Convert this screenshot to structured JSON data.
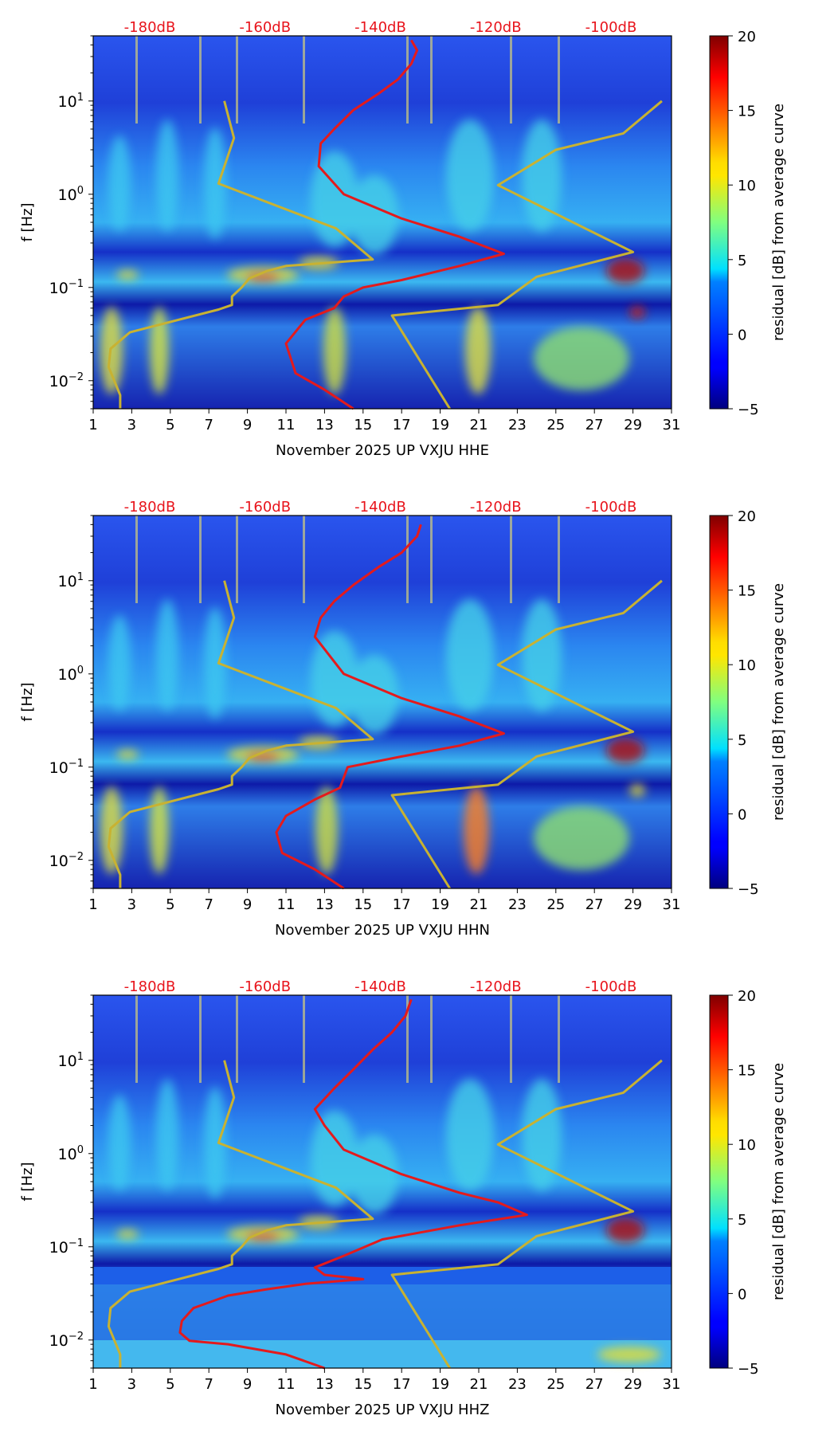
{
  "chart_data": [
    {
      "type": "heatmap",
      "title": "",
      "xlabel": "November 2025 UP VXJU  HHE",
      "ylabel": "f [Hz]",
      "xlim": [
        1,
        31
      ],
      "ylim": [
        0.005,
        50
      ],
      "yscale": "log",
      "x_ticks": [
        "1",
        "3",
        "5",
        "7",
        "9",
        "11",
        "13",
        "15",
        "17",
        "19",
        "21",
        "23",
        "25",
        "27",
        "29",
        "31"
      ],
      "y_ticks": [
        {
          "value": 0.01,
          "base": "10",
          "exp": "−2"
        },
        {
          "value": 0.1,
          "base": "10",
          "exp": "−1"
        },
        {
          "value": 1,
          "base": "10",
          "exp": "0"
        },
        {
          "value": 10,
          "base": "10",
          "exp": "1"
        }
      ],
      "top_labels": [
        "-180dB",
        "-160dB",
        "-140dB",
        "-120dB",
        "-100dB"
      ],
      "colorbar": {
        "label": "residual [dB] from average curve",
        "min": -5,
        "max": 20,
        "ticks": [
          "20",
          "15",
          "10",
          "5",
          "0",
          "−5"
        ]
      },
      "series": [
        {
          "name": "low noise model",
          "color": "#c8b232",
          "points": [
            [
              2.4,
              0.005
            ],
            [
              2.4,
              0.007
            ],
            [
              1.8,
              0.014
            ],
            [
              1.9,
              0.022
            ],
            [
              2.9,
              0.033
            ],
            [
              7.5,
              0.058
            ],
            [
              8.2,
              0.065
            ],
            [
              8.2,
              0.08
            ],
            [
              8.7,
              0.1
            ],
            [
              9.1,
              0.125
            ],
            [
              10,
              0.15
            ],
            [
              11,
              0.17
            ],
            [
              15.5,
              0.2
            ],
            [
              13.6,
              0.43
            ],
            [
              7.5,
              1.3
            ],
            [
              8.3,
              4
            ],
            [
              7.8,
              10
            ]
          ]
        },
        {
          "name": "high noise model",
          "color": "#c8b232",
          "points": [
            [
              19.5,
              0.005
            ],
            [
              16.5,
              0.05
            ],
            [
              22,
              0.065
            ],
            [
              24,
              0.13
            ],
            [
              29,
              0.24
            ],
            [
              22,
              1.25
            ],
            [
              25,
              3
            ],
            [
              28.5,
              4.5
            ],
            [
              30.5,
              10
            ]
          ]
        },
        {
          "name": "median PSD",
          "color": "#e41a1c",
          "points": [
            [
              14.5,
              0.005
            ],
            [
              13,
              0.008
            ],
            [
              11.5,
              0.012
            ],
            [
              11,
              0.025
            ],
            [
              12,
              0.045
            ],
            [
              13.5,
              0.06
            ],
            [
              14,
              0.08
            ],
            [
              15,
              0.1
            ],
            [
              17,
              0.12
            ],
            [
              20,
              0.17
            ],
            [
              22.3,
              0.23
            ],
            [
              20,
              0.35
            ],
            [
              17,
              0.55
            ],
            [
              14,
              1
            ],
            [
              12.7,
              2
            ],
            [
              12.8,
              3.5
            ],
            [
              13.5,
              5
            ],
            [
              14.5,
              8
            ],
            [
              15.8,
              12
            ],
            [
              16.8,
              17
            ],
            [
              17.5,
              25
            ],
            [
              17.8,
              35
            ],
            [
              17.5,
              45
            ]
          ]
        }
      ]
    },
    {
      "type": "heatmap",
      "title": "",
      "xlabel": "November 2025 UP VXJU  HHN",
      "ylabel": "f [Hz]",
      "xlim": [
        1,
        31
      ],
      "ylim": [
        0.005,
        50
      ],
      "yscale": "log",
      "x_ticks": [
        "1",
        "3",
        "5",
        "7",
        "9",
        "11",
        "13",
        "15",
        "17",
        "19",
        "21",
        "23",
        "25",
        "27",
        "29",
        "31"
      ],
      "y_ticks": [
        {
          "value": 0.01,
          "base": "10",
          "exp": "−2"
        },
        {
          "value": 0.1,
          "base": "10",
          "exp": "−1"
        },
        {
          "value": 1,
          "base": "10",
          "exp": "0"
        },
        {
          "value": 10,
          "base": "10",
          "exp": "1"
        }
      ],
      "top_labels": [
        "-180dB",
        "-160dB",
        "-140dB",
        "-120dB",
        "-100dB"
      ],
      "colorbar": {
        "label": "residual [dB] from average curve",
        "min": -5,
        "max": 20,
        "ticks": [
          "20",
          "15",
          "10",
          "5",
          "0",
          "−5"
        ]
      },
      "series": [
        {
          "name": "low noise model",
          "color": "#c8b232",
          "points": [
            [
              2.4,
              0.005
            ],
            [
              2.4,
              0.007
            ],
            [
              1.8,
              0.014
            ],
            [
              1.9,
              0.022
            ],
            [
              2.9,
              0.033
            ],
            [
              7.5,
              0.058
            ],
            [
              8.2,
              0.065
            ],
            [
              8.2,
              0.08
            ],
            [
              8.7,
              0.1
            ],
            [
              9.1,
              0.125
            ],
            [
              10,
              0.15
            ],
            [
              11,
              0.17
            ],
            [
              15.5,
              0.2
            ],
            [
              13.6,
              0.43
            ],
            [
              7.5,
              1.3
            ],
            [
              8.3,
              4
            ],
            [
              7.8,
              10
            ]
          ]
        },
        {
          "name": "high noise model",
          "color": "#c8b232",
          "points": [
            [
              19.5,
              0.005
            ],
            [
              16.5,
              0.05
            ],
            [
              22,
              0.065
            ],
            [
              24,
              0.13
            ],
            [
              29,
              0.24
            ],
            [
              22,
              1.25
            ],
            [
              25,
              3
            ],
            [
              28.5,
              4.5
            ],
            [
              30.5,
              10
            ]
          ]
        },
        {
          "name": "median PSD",
          "color": "#e41a1c",
          "points": [
            [
              14,
              0.005
            ],
            [
              12.5,
              0.008
            ],
            [
              10.8,
              0.012
            ],
            [
              10.5,
              0.02
            ],
            [
              11,
              0.03
            ],
            [
              12.5,
              0.045
            ],
            [
              13.8,
              0.06
            ],
            [
              14.2,
              0.1
            ],
            [
              17,
              0.13
            ],
            [
              20,
              0.17
            ],
            [
              22.3,
              0.23
            ],
            [
              20,
              0.35
            ],
            [
              17,
              0.55
            ],
            [
              14,
              1
            ],
            [
              12.5,
              2.5
            ],
            [
              12.8,
              4
            ],
            [
              13.5,
              6
            ],
            [
              14.5,
              9
            ],
            [
              15.8,
              14
            ],
            [
              17,
              20
            ],
            [
              17.8,
              30
            ],
            [
              18,
              40
            ]
          ]
        }
      ]
    },
    {
      "type": "heatmap",
      "title": "",
      "xlabel": "November 2025 UP VXJU  HHZ",
      "ylabel": "f [Hz]",
      "xlim": [
        1,
        31
      ],
      "ylim": [
        0.005,
        50
      ],
      "yscale": "log",
      "x_ticks": [
        "1",
        "3",
        "5",
        "7",
        "9",
        "11",
        "13",
        "15",
        "17",
        "19",
        "21",
        "23",
        "25",
        "27",
        "29",
        "31"
      ],
      "y_ticks": [
        {
          "value": 0.01,
          "base": "10",
          "exp": "−2"
        },
        {
          "value": 0.1,
          "base": "10",
          "exp": "−1"
        },
        {
          "value": 1,
          "base": "10",
          "exp": "0"
        },
        {
          "value": 10,
          "base": "10",
          "exp": "1"
        }
      ],
      "top_labels": [
        "-180dB",
        "-160dB",
        "-140dB",
        "-120dB",
        "-100dB"
      ],
      "colorbar": {
        "label": "residual [dB] from average curve",
        "min": -5,
        "max": 20,
        "ticks": [
          "20",
          "15",
          "10",
          "5",
          "0",
          "−5"
        ]
      },
      "series": [
        {
          "name": "low noise model",
          "color": "#c8b232",
          "points": [
            [
              2.4,
              0.005
            ],
            [
              2.4,
              0.007
            ],
            [
              1.8,
              0.014
            ],
            [
              1.9,
              0.022
            ],
            [
              2.9,
              0.033
            ],
            [
              7.5,
              0.058
            ],
            [
              8.2,
              0.065
            ],
            [
              8.2,
              0.08
            ],
            [
              8.7,
              0.1
            ],
            [
              9.1,
              0.125
            ],
            [
              10,
              0.15
            ],
            [
              11,
              0.17
            ],
            [
              15.5,
              0.2
            ],
            [
              13.6,
              0.43
            ],
            [
              7.5,
              1.3
            ],
            [
              8.3,
              4
            ],
            [
              7.8,
              10
            ]
          ]
        },
        {
          "name": "high noise model",
          "color": "#c8b232",
          "points": [
            [
              19.5,
              0.005
            ],
            [
              16.5,
              0.05
            ],
            [
              22,
              0.065
            ],
            [
              24,
              0.13
            ],
            [
              29,
              0.24
            ],
            [
              22,
              1.25
            ],
            [
              25,
              3
            ],
            [
              28.5,
              4.5
            ],
            [
              30.5,
              10
            ]
          ]
        },
        {
          "name": "median PSD",
          "color": "#e41a1c",
          "points": [
            [
              13,
              0.005
            ],
            [
              11,
              0.007
            ],
            [
              8,
              0.009
            ],
            [
              6,
              0.0098
            ],
            [
              5.5,
              0.012
            ],
            [
              5.6,
              0.016
            ],
            [
              6.2,
              0.022
            ],
            [
              8,
              0.03
            ],
            [
              10,
              0.035
            ],
            [
              12,
              0.04
            ],
            [
              15,
              0.045
            ],
            [
              13,
              0.05
            ],
            [
              12.5,
              0.06
            ],
            [
              14,
              0.08
            ],
            [
              16,
              0.12
            ],
            [
              20,
              0.17
            ],
            [
              23.5,
              0.22
            ],
            [
              22,
              0.3
            ],
            [
              20,
              0.38
            ],
            [
              17,
              0.6
            ],
            [
              14,
              1.1
            ],
            [
              13,
              2
            ],
            [
              12.5,
              3
            ],
            [
              13.5,
              5
            ],
            [
              14.5,
              8
            ],
            [
              15.5,
              13
            ],
            [
              16.5,
              20
            ],
            [
              17.2,
              30
            ],
            [
              17.5,
              45
            ]
          ]
        }
      ]
    }
  ]
}
